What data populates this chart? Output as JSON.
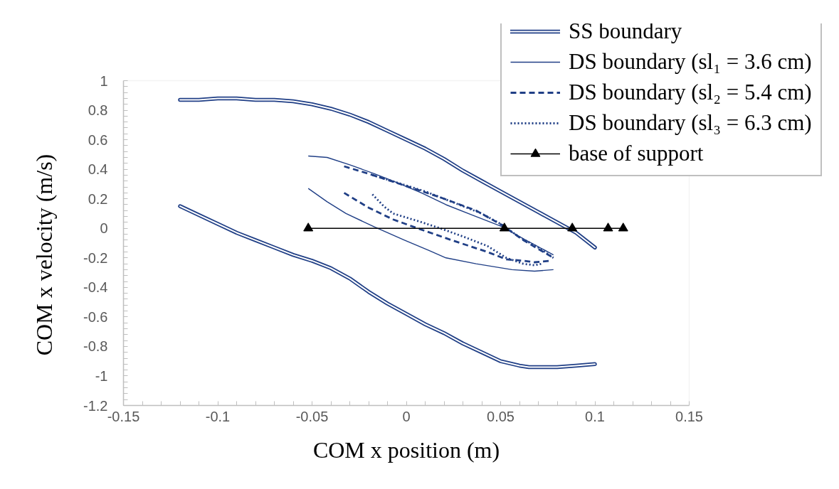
{
  "chart_data": {
    "type": "line",
    "xlabel": "COM x position (m)",
    "ylabel": "COM x velocity (m/s)",
    "xlim": [
      -0.15,
      0.15
    ],
    "xticks": [
      -0.15,
      -0.1,
      -0.05,
      0,
      0.05,
      0.1,
      0.15
    ],
    "ylim": [
      -1.2,
      1
    ],
    "yticks": [
      -1.2,
      -1,
      -0.8,
      -0.6,
      -0.4,
      -0.2,
      0,
      0.2,
      0.4,
      0.6,
      0.8,
      1
    ],
    "grid": false,
    "legend": "top right",
    "marker": "none",
    "series": [
      {
        "name": "SS boundary",
        "color": "#203f86",
        "line_style": "solid",
        "x": [
          -0.12,
          -0.11,
          -0.1,
          -0.09,
          -0.08,
          -0.07,
          -0.06,
          -0.05,
          -0.04,
          -0.03,
          -0.02,
          -0.01,
          0,
          0.01,
          0.02,
          0.03,
          0.04,
          0.05,
          0.06,
          0.07,
          0.08,
          0.09,
          0.1
        ],
        "values": [
          0.87,
          0.87,
          0.88,
          0.88,
          0.87,
          0.87,
          0.86,
          0.84,
          0.81,
          0.77,
          0.72,
          0.66,
          0.6,
          0.54,
          0.47,
          0.39,
          0.32,
          0.25,
          0.18,
          0.11,
          0.04,
          -0.03,
          -0.13
        ]
      },
      {
        "color": "#203f86",
        "line_style": "solid",
        "x": [
          -0.12,
          -0.11,
          -0.1,
          -0.09,
          -0.08,
          -0.07,
          -0.06,
          -0.05,
          -0.04,
          -0.03,
          -0.02,
          -0.01,
          0,
          0.01,
          0.02,
          0.03,
          0.04,
          0.05,
          0.06,
          0.065,
          0.07,
          0.08,
          0.09,
          0.1
        ],
        "values": [
          0.15,
          0.09,
          0.03,
          -0.03,
          -0.08,
          -0.13,
          -0.18,
          -0.22,
          -0.27,
          -0.34,
          -0.43,
          -0.51,
          -0.58,
          -0.65,
          -0.71,
          -0.78,
          -0.84,
          -0.9,
          -0.93,
          -0.94,
          -0.94,
          -0.94,
          -0.93,
          -0.92
        ]
      },
      {
        "name": "DS boundary (sl₁ = 3.6 cm)",
        "color": "#203f86",
        "line_style": "solid",
        "x": [
          -0.052,
          -0.042,
          -0.03,
          -0.017,
          -0.005,
          0.008,
          0.021,
          0.035,
          0.051,
          0.062,
          0.078
        ],
        "values": [
          0.49,
          0.48,
          0.43,
          0.37,
          0.31,
          0.24,
          0.16,
          0.09,
          0.01,
          -0.07,
          -0.18
        ]
      },
      {
        "color": "#203f86",
        "line_style": "solid",
        "x": [
          -0.052,
          -0.042,
          -0.032,
          -0.017,
          -0.001,
          0.012,
          0.021,
          0.037,
          0.056,
          0.068,
          0.078
        ],
        "values": [
          0.27,
          0.18,
          0.1,
          0.01,
          -0.08,
          -0.15,
          -0.2,
          -0.24,
          -0.28,
          -0.29,
          -0.28
        ]
      },
      {
        "name": "DS boundary (sl₂ = 5.4 cm)",
        "color": "#203f86",
        "line_style": "dashed",
        "x": [
          -0.033,
          -0.02,
          -0.001,
          0.018,
          0.037,
          0.051,
          0.062,
          0.078
        ],
        "values": [
          0.42,
          0.37,
          0.29,
          0.21,
          0.12,
          0.02,
          -0.08,
          -0.2
        ]
      },
      {
        "color": "#203f86",
        "line_style": "dashed",
        "x": [
          -0.033,
          -0.02,
          -0.007,
          0.006,
          0.024,
          0.043,
          0.053,
          0.062,
          0.068,
          0.076
        ],
        "values": [
          0.24,
          0.14,
          0.06,
          0,
          -0.08,
          -0.16,
          -0.21,
          -0.22,
          -0.23,
          -0.22
        ]
      },
      {
        "name": "DS boundary (sl₃ = 6.3 cm)",
        "color": "#203f86",
        "line_style": "dotted",
        "x": [
          -0.018,
          -0.01,
          0,
          0.01,
          0.02,
          0.03,
          0.04,
          0.05,
          0.06,
          0.07,
          0.078
        ],
        "values": [
          0.36,
          0.33,
          0.29,
          0.25,
          0.2,
          0.15,
          0.1,
          0.03,
          -0.06,
          -0.13,
          -0.2
        ]
      },
      {
        "color": "#203f86",
        "line_style": "dotted",
        "x": [
          -0.018,
          -0.012,
          -0.007,
          0.006,
          0.018,
          0.031,
          0.043,
          0.053,
          0.062,
          0.068,
          0.072
        ],
        "values": [
          0.23,
          0.15,
          0.1,
          0.05,
          0,
          -0.06,
          -0.12,
          -0.2,
          -0.24,
          -0.25,
          -0.24
        ]
      },
      {
        "name": "base of support",
        "color": "#000000",
        "line_style": "solid",
        "marker": "triangle",
        "x": [
          -0.052,
          0.052,
          0.088,
          0.107,
          0.115
        ],
        "values": [
          0,
          0,
          0,
          0,
          0
        ]
      }
    ]
  }
}
